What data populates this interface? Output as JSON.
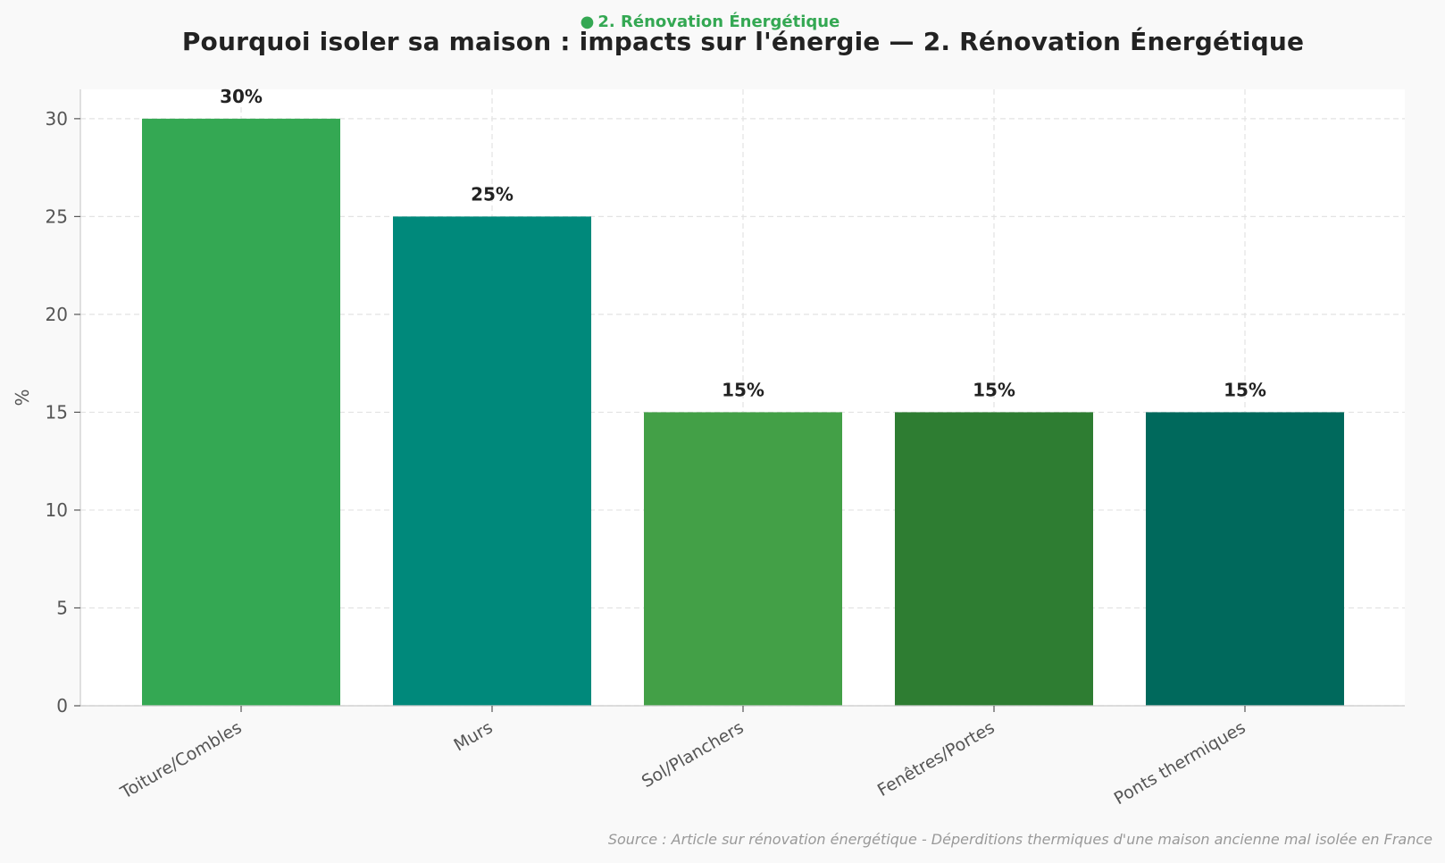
{
  "badge": {
    "text": "2. Rénovation Énergétique",
    "color": "#34a853"
  },
  "title": "Pourquoi isoler sa maison : impacts sur l'énergie  — 2. Rénovation Énergétique",
  "source": "Source : Article sur rénovation énergétique - Déperditions thermiques d'une maison ancienne mal isolée en France",
  "chart_data": {
    "type": "bar",
    "title": "Pourquoi isoler sa maison : impacts sur l'énergie  — 2. Rénovation Énergétique",
    "xlabel": "",
    "ylabel": "%",
    "categories": [
      "Toiture/Combles",
      "Murs",
      "Sol/Planchers",
      "Fenêtres/Portes",
      "Ponts thermiques"
    ],
    "values": [
      30,
      25,
      15,
      15,
      15
    ],
    "value_labels": [
      "30%",
      "25%",
      "15%",
      "15%",
      "15%"
    ],
    "colors": [
      "#34a853",
      "#00897b",
      "#43a047",
      "#2e7d32",
      "#00695c"
    ],
    "ylim": [
      0,
      31.5
    ],
    "yticks": [
      0,
      5,
      10,
      15,
      20,
      25,
      30
    ],
    "grid": true,
    "legend": "none"
  }
}
